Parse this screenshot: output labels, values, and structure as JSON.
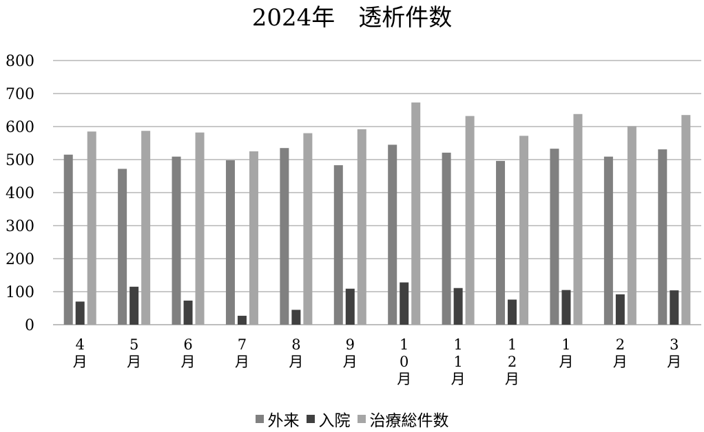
{
  "chart_data": {
    "type": "bar",
    "title": "2024年　透析件数",
    "categories": [
      "4月",
      "5月",
      "6月",
      "7月",
      "8月",
      "9月",
      "10月",
      "11月",
      "12月",
      "1月",
      "2月",
      "3月"
    ],
    "series": [
      {
        "name": "外来",
        "color": "#808080",
        "values": [
          515,
          472,
          509,
          498,
          535,
          483,
          545,
          521,
          496,
          533,
          509,
          531
        ]
      },
      {
        "name": "入院",
        "color": "#404040",
        "values": [
          70,
          115,
          73,
          27,
          45,
          109,
          128,
          111,
          76,
          105,
          92,
          104
        ]
      },
      {
        "name": "治療総件数",
        "color": "#a6a6a6",
        "values": [
          585,
          587,
          582,
          525,
          580,
          592,
          673,
          632,
          572,
          638,
          601,
          635
        ]
      }
    ],
    "ylim": [
      0,
      800
    ],
    "yticks": [
      0,
      100,
      200,
      300,
      400,
      500,
      600,
      700,
      800
    ],
    "grid": true,
    "legend_position": "bottom"
  }
}
